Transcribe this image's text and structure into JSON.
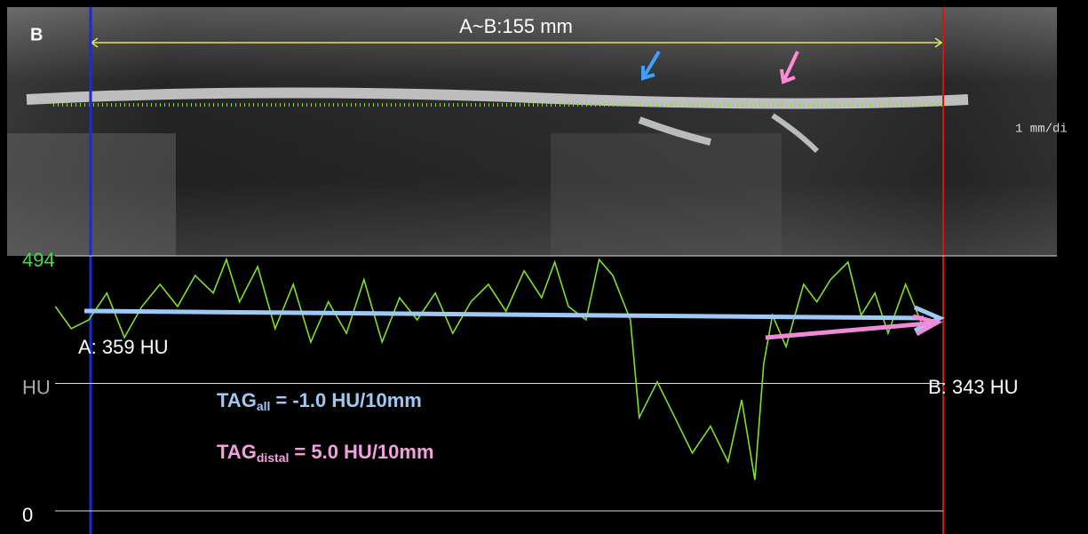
{
  "panel_label": "B",
  "measurement": "A~B:155 mm",
  "scale_label": "1 mm/di",
  "chart_data": {
    "type": "line",
    "x": [
      -6.6,
      -3.7,
      -0.5,
      2.8,
      6.0,
      9.2,
      12.5,
      15.7,
      18.9,
      22.2,
      24.6,
      27.0,
      30.3,
      33.5,
      36.8,
      40.0,
      43.2,
      46.5,
      49.7,
      53.0,
      56.2,
      59.4,
      62.7,
      65.9,
      69.2,
      72.4,
      75.6,
      78.9,
      82.1,
      84.5,
      87.0,
      90.2,
      92.6,
      95.1,
      98.3,
      99.9,
      103.2,
      106.4,
      109.6,
      112.9,
      116.1,
      118.6,
      121.0,
      122.6,
      124.2,
      126.7,
      129.9,
      132.3,
      134.8,
      138.0,
      140.4,
      142.9,
      145.3,
      148.5,
      151.8,
      154.7
    ],
    "series": [
      {
        "color": "#7fe12b",
        "values": [
          396,
          353,
          370,
          422,
          336,
          396,
          439,
          396,
          456,
          422,
          487,
          405,
          473,
          353,
          439,
          327,
          405,
          344,
          448,
          327,
          413,
          370,
          422,
          344,
          405,
          439,
          387,
          465,
          413,
          482,
          396,
          370,
          487,
          456,
          370,
          181,
          250,
          181,
          112,
          164,
          95,
          215,
          60,
          284,
          379,
          318,
          439,
          405,
          448,
          482,
          379,
          422,
          344,
          439,
          353,
          370
        ]
      }
    ],
    "xlim": [
      -15.4,
      176.1
    ],
    "ylim": [
      0,
      494
    ],
    "yticks": [
      0,
      {
        "value": 247,
        "label": "HU"
      },
      494
    ],
    "annotations": {
      "point_a": "A: 359 HU",
      "point_b": "B: 343 HU",
      "tag_all": {
        "base": "TAG",
        "sub": "all",
        "rest": "= -1.0 HU/10mm"
      },
      "tag_distal": {
        "base": "TAG",
        "sub": "distal",
        "rest": "= 5.0 HU/10mm"
      }
    }
  }
}
